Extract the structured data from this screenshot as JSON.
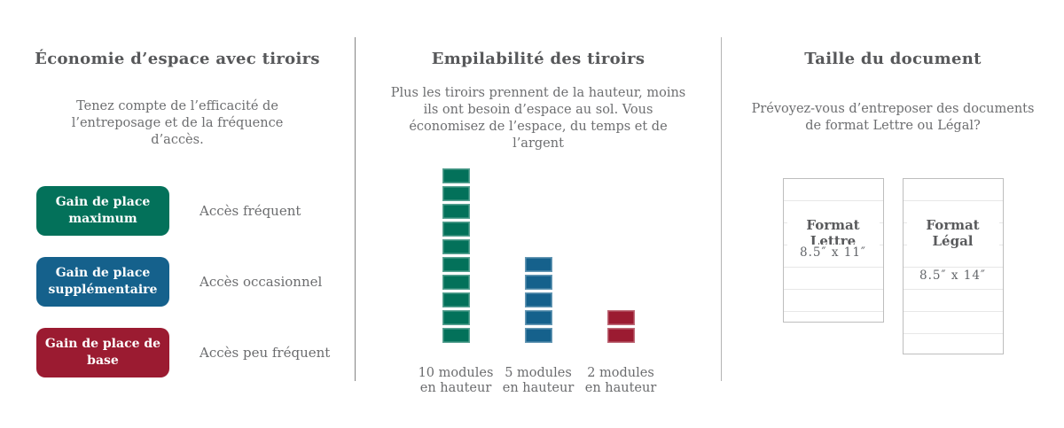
{
  "panels": {
    "space_saving": {
      "title": "Économie d’espace avec tiroirs",
      "subtitle": "Tenez compte de l’efficacité de l’entreposage et de la fréquence d’accès.",
      "legend": [
        {
          "badge": "Gain de place maximum",
          "label": "Accès fréquent",
          "color": "#03715A"
        },
        {
          "badge": "Gain de place supplémentaire",
          "label": "Accès occasionnel",
          "color": "#15618C"
        },
        {
          "badge": "Gain de place de base",
          "label": "Accès peu fréquent",
          "color": "#9B1B31"
        }
      ]
    },
    "stackability": {
      "title": "Empilabilité des tiroirs",
      "subtitle": "Plus les tiroirs prennent de la hauteur, moins ils ont besoin d’espace au sol. Vous économisez de l’espace, du temps et de l’argent",
      "chart_data": {
        "type": "bar",
        "categories": [
          "10 modules en hauteur",
          "5 modules en hauteur",
          "2 modules en hauteur"
        ],
        "values": [
          10,
          5,
          2
        ],
        "colors": [
          "#03715A",
          "#15618C",
          "#9B1B31"
        ],
        "unit": "modules",
        "ylim": [
          0,
          10
        ],
        "grid": false,
        "legend_position": "none"
      }
    },
    "document_size": {
      "title": "Taille du document",
      "subtitle": "Prévoyez-vous d’entreposer des documents de format Lettre ou Légal?",
      "documents": [
        {
          "name": "Format Lettre",
          "size": "8.5″ x 11″"
        },
        {
          "name": "Format Légal",
          "size": "8.5″ x 14″"
        }
      ]
    }
  }
}
